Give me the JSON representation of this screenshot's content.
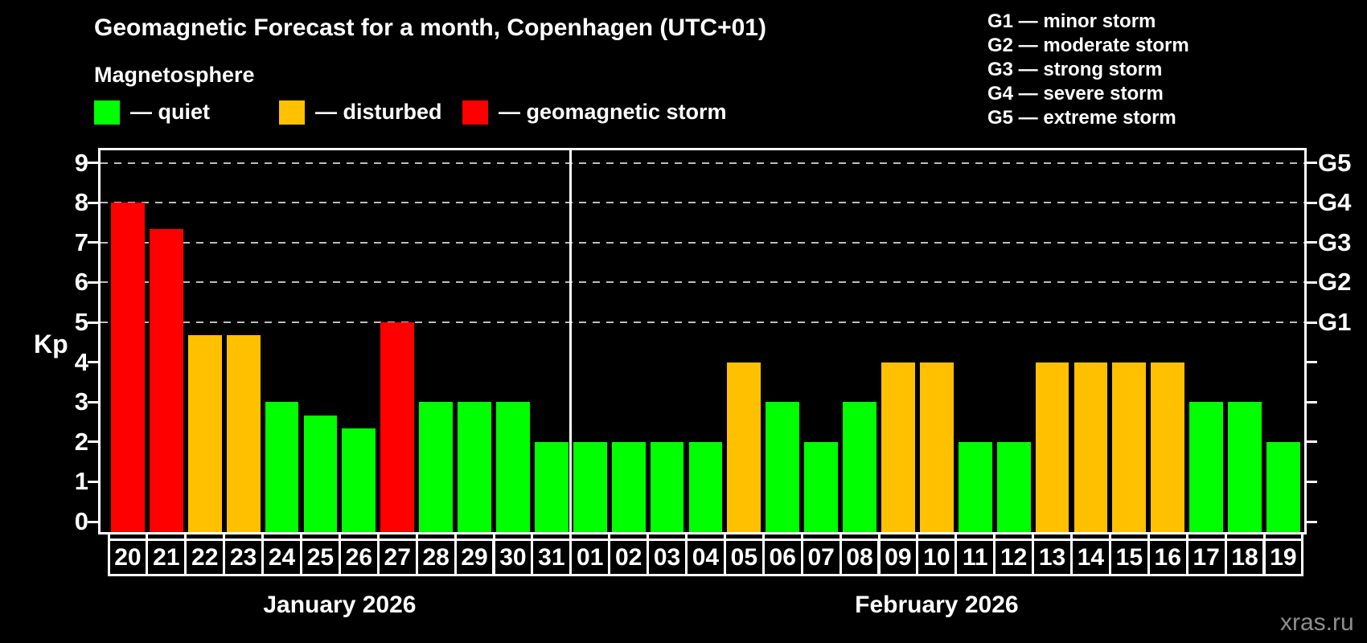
{
  "header": {
    "title": "Geomagnetic Forecast for a month, Copenhagen (UTC+01)",
    "subtitle": "Magnetosphere"
  },
  "legend": {
    "items": [
      {
        "key": "quiet",
        "label": "— quiet",
        "color": "#00FF00"
      },
      {
        "key": "disturbed",
        "label": "— disturbed",
        "color": "#FFC000"
      },
      {
        "key": "storm",
        "label": "— geomagnetic storm",
        "color": "#FF0000"
      }
    ]
  },
  "g_scale_legend": {
    "lines": [
      "G1 — minor storm",
      "G2 — moderate storm",
      "G3 — strong storm",
      "G4 — severe storm",
      "G5 — extreme storm"
    ]
  },
  "watermark": "xras.ru",
  "chart_data": {
    "type": "bar",
    "title": "Geomagnetic Forecast for a month, Copenhagen (UTC+01)",
    "series_label": "Magnetosphere",
    "ylabel": "Kp",
    "ylim": [
      0,
      9.45
    ],
    "y_ticks": [
      0,
      1,
      2,
      3,
      4,
      5,
      6,
      7,
      8,
      9
    ],
    "grid": "dashed-at-storm-levels",
    "grid_levels_kp": [
      5,
      6,
      7,
      8,
      9
    ],
    "right_axis": [
      {
        "kp": 5,
        "label": "G1"
      },
      {
        "kp": 6,
        "label": "G2"
      },
      {
        "kp": 7,
        "label": "G3"
      },
      {
        "kp": 8,
        "label": "G4"
      },
      {
        "kp": 9,
        "label": "G5"
      }
    ],
    "legend_position": "top-left",
    "months": [
      {
        "label": "January 2026",
        "days": [
          {
            "date": "20",
            "kp": 8.0,
            "condition": "storm"
          },
          {
            "date": "21",
            "kp": 7.33,
            "condition": "storm"
          },
          {
            "date": "22",
            "kp": 4.67,
            "condition": "disturbed"
          },
          {
            "date": "23",
            "kp": 4.67,
            "condition": "disturbed"
          },
          {
            "date": "24",
            "kp": 3.0,
            "condition": "quiet"
          },
          {
            "date": "25",
            "kp": 2.67,
            "condition": "quiet"
          },
          {
            "date": "26",
            "kp": 2.33,
            "condition": "quiet"
          },
          {
            "date": "27",
            "kp": 5.0,
            "condition": "storm"
          },
          {
            "date": "28",
            "kp": 3.0,
            "condition": "quiet"
          },
          {
            "date": "29",
            "kp": 3.0,
            "condition": "quiet"
          },
          {
            "date": "30",
            "kp": 3.0,
            "condition": "quiet"
          },
          {
            "date": "31",
            "kp": 2.0,
            "condition": "quiet"
          }
        ]
      },
      {
        "label": "February 2026",
        "days": [
          {
            "date": "01",
            "kp": 2.0,
            "condition": "quiet"
          },
          {
            "date": "02",
            "kp": 2.0,
            "condition": "quiet"
          },
          {
            "date": "03",
            "kp": 2.0,
            "condition": "quiet"
          },
          {
            "date": "04",
            "kp": 2.0,
            "condition": "quiet"
          },
          {
            "date": "05",
            "kp": 4.0,
            "condition": "disturbed"
          },
          {
            "date": "06",
            "kp": 3.0,
            "condition": "quiet"
          },
          {
            "date": "07",
            "kp": 2.0,
            "condition": "quiet"
          },
          {
            "date": "08",
            "kp": 3.0,
            "condition": "quiet"
          },
          {
            "date": "09",
            "kp": 4.0,
            "condition": "disturbed"
          },
          {
            "date": "10",
            "kp": 4.0,
            "condition": "disturbed"
          },
          {
            "date": "11",
            "kp": 2.0,
            "condition": "quiet"
          },
          {
            "date": "12",
            "kp": 2.0,
            "condition": "quiet"
          },
          {
            "date": "13",
            "kp": 4.0,
            "condition": "disturbed"
          },
          {
            "date": "14",
            "kp": 4.0,
            "condition": "disturbed"
          },
          {
            "date": "15",
            "kp": 4.0,
            "condition": "disturbed"
          },
          {
            "date": "16",
            "kp": 4.0,
            "condition": "disturbed"
          },
          {
            "date": "17",
            "kp": 3.0,
            "condition": "quiet"
          },
          {
            "date": "18",
            "kp": 3.0,
            "condition": "quiet"
          },
          {
            "date": "19",
            "kp": 2.0,
            "condition": "quiet"
          }
        ]
      }
    ]
  }
}
